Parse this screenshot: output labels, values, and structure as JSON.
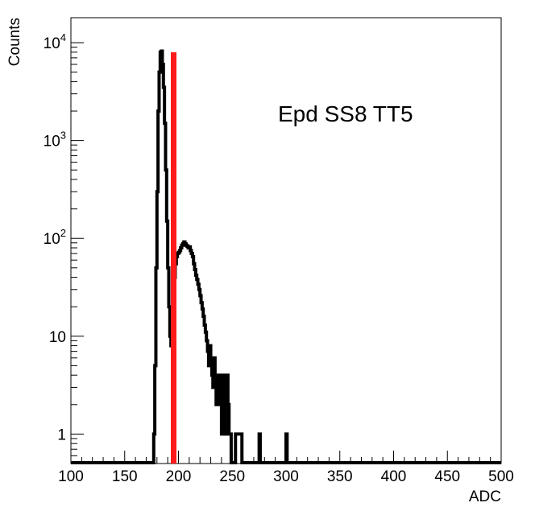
{
  "chart_data": {
    "type": "histogram",
    "title": "",
    "annotation": "Epd SS8 TT5",
    "xlabel": "ADC",
    "ylabel": "Counts",
    "xlim": [
      100,
      500
    ],
    "ylim": [
      0.5,
      18000
    ],
    "yscale": "log",
    "grid": false,
    "legend": "none",
    "x_ticks": [
      100,
      150,
      200,
      250,
      300,
      350,
      400,
      450,
      500
    ],
    "x_tick_labels": [
      "100",
      "150",
      "200",
      "250",
      "300",
      "350",
      "400",
      "450",
      "500"
    ],
    "y_ticks": [
      1,
      10,
      100,
      1000,
      10000
    ],
    "y_tick_labels": [
      {
        "base": "1",
        "exp": ""
      },
      {
        "base": "10",
        "exp": ""
      },
      {
        "base": "10",
        "exp": "2"
      },
      {
        "base": "10",
        "exp": "3"
      },
      {
        "base": "10",
        "exp": "4"
      }
    ],
    "bin_width": 1,
    "series": [
      {
        "color": "#000000",
        "bins": [
          [
            177,
            1
          ],
          [
            178,
            5
          ],
          [
            179,
            50
          ],
          [
            180,
            300
          ],
          [
            181,
            2000
          ],
          [
            182,
            5000
          ],
          [
            183,
            8000
          ],
          [
            184,
            8200
          ],
          [
            185,
            6000
          ],
          [
            186,
            3500
          ],
          [
            187,
            1500
          ],
          [
            188,
            500
          ],
          [
            189,
            150
          ],
          [
            190,
            50
          ],
          [
            191,
            20
          ],
          [
            192,
            10
          ],
          [
            193,
            8
          ],
          [
            194,
            8
          ],
          [
            195,
            20
          ],
          [
            196,
            40
          ],
          [
            197,
            55
          ],
          [
            198,
            65
          ],
          [
            199,
            70
          ],
          [
            200,
            72
          ],
          [
            201,
            75
          ],
          [
            202,
            80
          ],
          [
            203,
            85
          ],
          [
            204,
            88
          ],
          [
            205,
            92
          ],
          [
            206,
            88
          ],
          [
            207,
            85
          ],
          [
            208,
            83
          ],
          [
            209,
            80
          ],
          [
            210,
            82
          ],
          [
            211,
            75
          ],
          [
            212,
            70
          ],
          [
            213,
            65
          ],
          [
            214,
            55
          ],
          [
            215,
            48
          ],
          [
            216,
            42
          ],
          [
            217,
            38
          ],
          [
            218,
            34
          ],
          [
            219,
            30
          ],
          [
            220,
            26
          ],
          [
            221,
            22
          ],
          [
            222,
            19
          ],
          [
            223,
            16
          ],
          [
            224,
            13
          ],
          [
            225,
            11
          ],
          [
            226,
            9
          ],
          [
            227,
            7
          ],
          [
            228,
            5
          ],
          [
            229,
            8
          ],
          [
            230,
            5
          ],
          [
            231,
            4
          ],
          [
            232,
            3
          ],
          [
            233,
            6
          ],
          [
            234,
            4
          ],
          [
            235,
            2
          ],
          [
            236,
            2
          ],
          [
            237,
            3
          ],
          [
            238,
            4
          ],
          [
            239,
            2
          ],
          [
            240,
            1
          ],
          [
            241,
            2
          ],
          [
            242,
            4
          ],
          [
            243,
            3
          ],
          [
            244,
            1
          ],
          [
            245,
            4
          ],
          [
            246,
            2
          ],
          [
            247,
            1
          ],
          [
            248,
            1
          ],
          [
            253,
            1
          ],
          [
            254,
            1
          ],
          [
            255,
            1
          ],
          [
            256,
            1
          ],
          [
            257,
            1
          ],
          [
            258,
            1
          ],
          [
            275,
            1
          ],
          [
            300,
            1
          ]
        ]
      }
    ],
    "marker": {
      "x": 195.5,
      "color": "#ff1a1a",
      "y_top": 8000
    }
  }
}
